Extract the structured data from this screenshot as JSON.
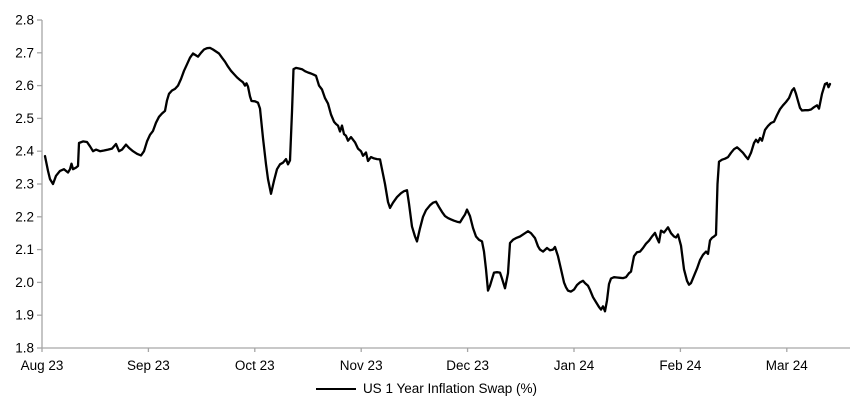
{
  "legend": {
    "label": "US 1 Year Inflation Swap (%)"
  },
  "chart_data": {
    "type": "line",
    "title": "",
    "xlabel": "",
    "ylabel": "",
    "grid": false,
    "legend_position": "bottom-center",
    "axis_color": "#a6a6a6",
    "tick_label_color": "#000000",
    "line_color": "#000000",
    "ylim": [
      1.8,
      2.8
    ],
    "y_ticks": [
      1.8,
      1.9,
      2.0,
      2.1,
      2.2,
      2.3,
      2.4,
      2.5,
      2.6,
      2.7,
      2.8
    ],
    "x_tick_labels": [
      "Aug 23",
      "Sep 23",
      "Oct 23",
      "Nov 23",
      "Dec 23",
      "Jan 24",
      "Feb 24",
      "Mar 24"
    ],
    "series": [
      {
        "name": "US 1 Year Inflation Swap (%)",
        "points": [
          [
            45,
            2.385
          ],
          [
            48,
            2.34
          ],
          [
            50,
            2.315
          ],
          [
            53,
            2.3
          ],
          [
            56,
            2.325
          ],
          [
            60,
            2.34
          ],
          [
            64,
            2.345
          ],
          [
            68,
            2.335
          ],
          [
            70,
            2.345
          ],
          [
            71.5,
            2.362
          ],
          [
            73,
            2.345
          ],
          [
            76,
            2.35
          ],
          [
            78,
            2.355
          ],
          [
            79,
            2.425
          ],
          [
            83,
            2.43
          ],
          [
            87,
            2.428
          ],
          [
            90,
            2.415
          ],
          [
            93,
            2.4
          ],
          [
            96,
            2.405
          ],
          [
            100,
            2.4
          ],
          [
            104,
            2.402
          ],
          [
            108,
            2.405
          ],
          [
            112,
            2.408
          ],
          [
            116,
            2.422
          ],
          [
            119,
            2.4
          ],
          [
            122,
            2.405
          ],
          [
            126,
            2.42
          ],
          [
            129,
            2.41
          ],
          [
            133,
            2.4
          ],
          [
            137,
            2.392
          ],
          [
            141,
            2.387
          ],
          [
            144,
            2.4
          ],
          [
            147,
            2.43
          ],
          [
            150,
            2.45
          ],
          [
            153,
            2.462
          ],
          [
            156,
            2.487
          ],
          [
            159,
            2.505
          ],
          [
            162,
            2.515
          ],
          [
            165,
            2.523
          ],
          [
            167,
            2.555
          ],
          [
            169,
            2.575
          ],
          [
            172,
            2.585
          ],
          [
            175,
            2.59
          ],
          [
            178,
            2.6
          ],
          [
            181,
            2.62
          ],
          [
            184,
            2.645
          ],
          [
            187,
            2.665
          ],
          [
            190,
            2.685
          ],
          [
            193,
            2.698
          ],
          [
            196,
            2.692
          ],
          [
            198,
            2.688
          ],
          [
            201,
            2.7
          ],
          [
            204,
            2.71
          ],
          [
            207,
            2.714
          ],
          [
            210,
            2.715
          ],
          [
            213,
            2.71
          ],
          [
            216,
            2.704
          ],
          [
            219,
            2.698
          ],
          [
            222,
            2.685
          ],
          [
            225,
            2.673
          ],
          [
            228,
            2.658
          ],
          [
            231,
            2.645
          ],
          [
            234,
            2.635
          ],
          [
            237,
            2.625
          ],
          [
            240,
            2.617
          ],
          [
            243,
            2.61
          ],
          [
            245,
            2.6
          ],
          [
            246.5,
            2.607
          ],
          [
            248,
            2.597
          ],
          [
            250,
            2.567
          ],
          [
            251.5,
            2.553
          ],
          [
            255,
            2.552
          ],
          [
            258,
            2.548
          ],
          [
            260,
            2.53
          ],
          [
            263,
            2.44
          ],
          [
            266,
            2.36
          ],
          [
            268,
            2.315
          ],
          [
            271,
            2.27
          ],
          [
            274,
            2.31
          ],
          [
            277,
            2.345
          ],
          [
            280,
            2.36
          ],
          [
            283,
            2.365
          ],
          [
            286,
            2.376
          ],
          [
            288,
            2.36
          ],
          [
            290,
            2.372
          ],
          [
            292,
            2.52
          ],
          [
            293.5,
            2.65
          ],
          [
            296,
            2.654
          ],
          [
            299,
            2.652
          ],
          [
            302,
            2.65
          ],
          [
            305,
            2.644
          ],
          [
            308,
            2.64
          ],
          [
            311,
            2.637
          ],
          [
            314,
            2.633
          ],
          [
            316,
            2.63
          ],
          [
            319,
            2.6
          ],
          [
            322,
            2.588
          ],
          [
            325,
            2.562
          ],
          [
            328,
            2.545
          ],
          [
            331,
            2.512
          ],
          [
            334,
            2.49
          ],
          [
            336,
            2.483
          ],
          [
            338,
            2.478
          ],
          [
            340,
            2.46
          ],
          [
            342,
            2.478
          ],
          [
            344,
            2.452
          ],
          [
            346,
            2.447
          ],
          [
            348,
            2.432
          ],
          [
            351,
            2.443
          ],
          [
            355,
            2.427
          ],
          [
            358,
            2.408
          ],
          [
            361,
            2.4
          ],
          [
            363,
            2.386
          ],
          [
            366,
            2.396
          ],
          [
            368,
            2.37
          ],
          [
            371,
            2.382
          ],
          [
            374,
            2.378
          ],
          [
            377,
            2.376
          ],
          [
            380,
            2.375
          ],
          [
            382,
            2.345
          ],
          [
            385,
            2.3
          ],
          [
            388,
            2.245
          ],
          [
            390,
            2.227
          ],
          [
            393,
            2.243
          ],
          [
            397,
            2.26
          ],
          [
            401,
            2.272
          ],
          [
            404,
            2.278
          ],
          [
            407,
            2.281
          ],
          [
            409,
            2.24
          ],
          [
            412,
            2.17
          ],
          [
            415,
            2.14
          ],
          [
            417,
            2.125
          ],
          [
            420,
            2.165
          ],
          [
            423,
            2.2
          ],
          [
            426,
            2.22
          ],
          [
            430,
            2.235
          ],
          [
            433,
            2.243
          ],
          [
            436,
            2.246
          ],
          [
            439,
            2.23
          ],
          [
            442,
            2.215
          ],
          [
            445,
            2.202
          ],
          [
            448,
            2.196
          ],
          [
            451,
            2.192
          ],
          [
            454,
            2.188
          ],
          [
            457,
            2.185
          ],
          [
            460,
            2.183
          ],
          [
            463,
            2.198
          ],
          [
            465,
            2.207
          ],
          [
            467,
            2.222
          ],
          [
            470,
            2.202
          ],
          [
            473,
            2.166
          ],
          [
            476,
            2.14
          ],
          [
            479,
            2.13
          ],
          [
            482,
            2.125
          ],
          [
            484,
            2.094
          ],
          [
            486,
            2.04
          ],
          [
            488,
            1.975
          ],
          [
            490,
            1.99
          ],
          [
            492,
            2.01
          ],
          [
            494,
            2.03
          ],
          [
            497,
            2.031
          ],
          [
            500,
            2.03
          ],
          [
            502,
            2.012
          ],
          [
            505,
            1.982
          ],
          [
            508,
            2.028
          ],
          [
            510,
            2.12
          ],
          [
            513,
            2.13
          ],
          [
            516,
            2.135
          ],
          [
            520,
            2.14
          ],
          [
            525,
            2.15
          ],
          [
            528,
            2.156
          ],
          [
            531,
            2.15
          ],
          [
            535,
            2.135
          ],
          [
            538,
            2.11
          ],
          [
            540,
            2.1
          ],
          [
            543,
            2.094
          ],
          [
            547,
            2.105
          ],
          [
            550,
            2.098
          ],
          [
            553,
            2.1
          ],
          [
            555,
            2.108
          ],
          [
            558,
            2.08
          ],
          [
            561,
            2.04
          ],
          [
            564,
            2.0
          ],
          [
            566,
            1.985
          ],
          [
            568,
            1.975
          ],
          [
            571,
            1.972
          ],
          [
            574,
            1.978
          ],
          [
            577,
            1.992
          ],
          [
            580,
            2.0
          ],
          [
            583,
            2.005
          ],
          [
            585,
            1.998
          ],
          [
            588,
            1.99
          ],
          [
            590,
            1.977
          ],
          [
            593,
            1.955
          ],
          [
            596,
            1.94
          ],
          [
            599,
            1.925
          ],
          [
            601,
            1.917
          ],
          [
            603,
            1.927
          ],
          [
            605,
            1.912
          ],
          [
            607,
            1.945
          ],
          [
            609,
            1.995
          ],
          [
            611,
            2.012
          ],
          [
            614,
            2.016
          ],
          [
            617,
            2.015
          ],
          [
            620,
            2.014
          ],
          [
            623,
            2.013
          ],
          [
            626,
            2.016
          ],
          [
            629,
            2.028
          ],
          [
            631,
            2.033
          ],
          [
            634,
            2.08
          ],
          [
            637,
            2.092
          ],
          [
            640,
            2.094
          ],
          [
            643,
            2.105
          ],
          [
            646,
            2.118
          ],
          [
            649,
            2.127
          ],
          [
            652,
            2.14
          ],
          [
            655,
            2.151
          ],
          [
            657,
            2.135
          ],
          [
            659,
            2.122
          ],
          [
            661,
            2.158
          ],
          [
            664,
            2.152
          ],
          [
            666,
            2.16
          ],
          [
            668,
            2.168
          ],
          [
            671,
            2.15
          ],
          [
            674,
            2.14
          ],
          [
            676,
            2.137
          ],
          [
            678,
            2.146
          ],
          [
            681,
            2.112
          ],
          [
            684,
            2.04
          ],
          [
            687,
            2.005
          ],
          [
            689,
            1.993
          ],
          [
            691,
            1.998
          ],
          [
            694,
            2.02
          ],
          [
            697,
            2.042
          ],
          [
            700,
            2.068
          ],
          [
            703,
            2.084
          ],
          [
            706,
            2.094
          ],
          [
            708,
            2.087
          ],
          [
            710,
            2.128
          ],
          [
            712,
            2.136
          ],
          [
            714,
            2.14
          ],
          [
            716,
            2.145
          ],
          [
            717.5,
            2.3
          ],
          [
            719,
            2.368
          ],
          [
            722,
            2.374
          ],
          [
            725,
            2.377
          ],
          [
            728,
            2.382
          ],
          [
            731,
            2.395
          ],
          [
            734,
            2.406
          ],
          [
            737,
            2.412
          ],
          [
            740,
            2.404
          ],
          [
            743,
            2.395
          ],
          [
            746,
            2.383
          ],
          [
            748,
            2.376
          ],
          [
            751,
            2.395
          ],
          [
            754,
            2.425
          ],
          [
            756,
            2.435
          ],
          [
            758,
            2.427
          ],
          [
            760,
            2.44
          ],
          [
            762,
            2.432
          ],
          [
            765,
            2.465
          ],
          [
            768,
            2.477
          ],
          [
            771,
            2.486
          ],
          [
            774,
            2.49
          ],
          [
            777,
            2.51
          ],
          [
            780,
            2.528
          ],
          [
            783,
            2.54
          ],
          [
            786,
            2.55
          ],
          [
            789,
            2.562
          ],
          [
            792,
            2.585
          ],
          [
            794,
            2.592
          ],
          [
            796,
            2.575
          ],
          [
            798,
            2.553
          ],
          [
            800,
            2.532
          ],
          [
            802,
            2.524
          ],
          [
            805,
            2.525
          ],
          [
            808,
            2.525
          ],
          [
            811,
            2.527
          ],
          [
            814,
            2.534
          ],
          [
            817,
            2.54
          ],
          [
            819,
            2.53
          ],
          [
            822,
            2.575
          ],
          [
            825,
            2.605
          ],
          [
            827,
            2.608
          ],
          [
            828.5,
            2.595
          ],
          [
            830,
            2.605
          ]
        ]
      }
    ]
  }
}
